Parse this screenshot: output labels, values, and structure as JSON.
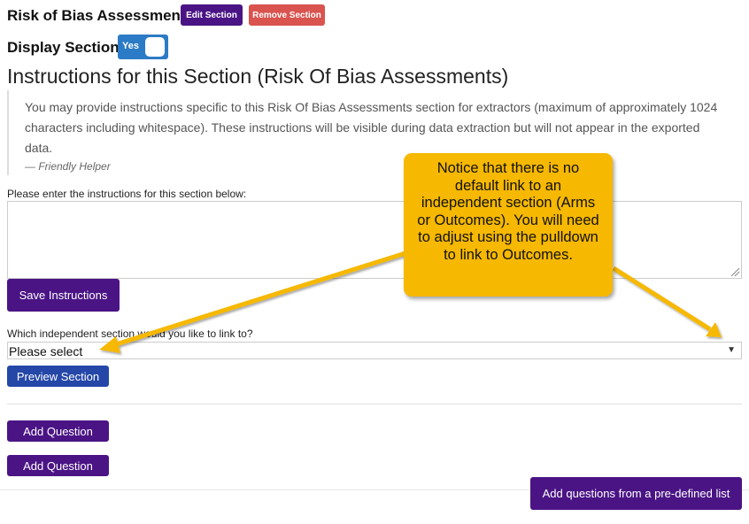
{
  "section": {
    "title": "Risk of Bias Assessment",
    "edit_label": "Edit Section",
    "remove_label": "Remove Section"
  },
  "display": {
    "label": "Display Section",
    "toggle_text": "Yes"
  },
  "instructions": {
    "heading": "Instructions for this Section (Risk Of Bias Assessments)",
    "quote_text": "You may provide instructions specific to this Risk Of Bias Assessments section for extractors (maximum of approximately 1024 characters including whitespace). These instructions will be visible during data extraction but will not appear in the exported data.",
    "quote_footer": "— Friendly Helper",
    "prompt": "Please enter the instructions for this section below:",
    "textarea_value": "",
    "save_label": "Save Instructions"
  },
  "link": {
    "prompt": "Which independent section would you like to link to?",
    "selected": "Please select",
    "preview_label": "Preview Section"
  },
  "questions": {
    "add_label_1": "Add Question",
    "add_label_2": "Add Question",
    "predefined_label": "Add questions from a pre-defined list"
  },
  "callout": {
    "text": "Notice that there is no default link to an independent section (Arms or Outcomes). You will need to adjust using the pulldown to link to Outcomes.",
    "color": "#f6b800"
  },
  "colors": {
    "purple": "#4a1485",
    "red": "#d9534f",
    "blue": "#2447a8",
    "toggle": "#2c7bc6"
  }
}
